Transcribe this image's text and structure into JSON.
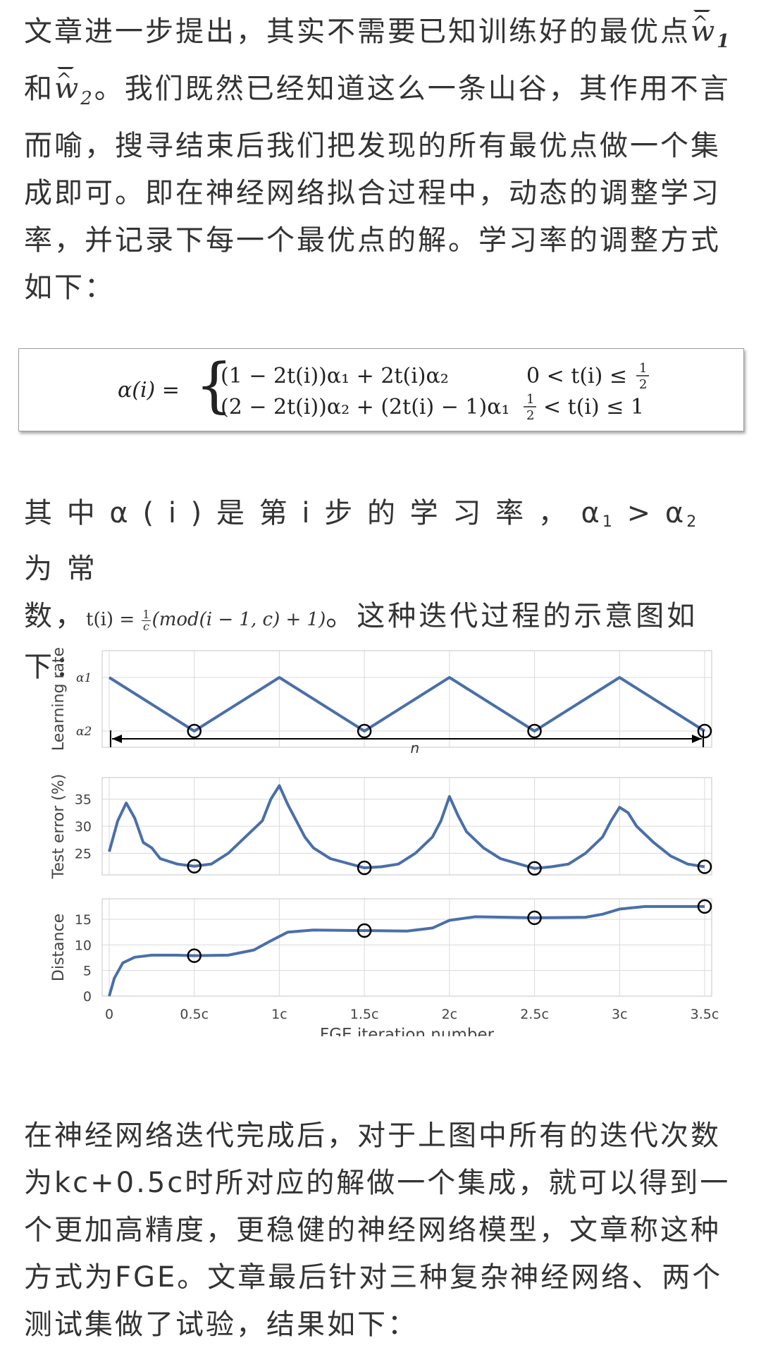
{
  "para1": {
    "text": "文章进一步提出，其实不需要已知训练好的最优点",
    "w1": "w",
    "w1_sub": "1",
    "and": "和",
    "w2": "w",
    "w2_sub": "2",
    "rest": "。我们既然已经知道这么一条山谷，其作用不言而喻，搜寻结束后我们把发现的所有最优点做一个集成即可。即在神经网络拟合过程中，动态的调整学习率，并记录下每一个最优点的解。学习率的调整方式如下："
  },
  "formula": {
    "lhs": "α(i) =",
    "case1_expr": "(1 − 2t(i))α₁ + 2t(i)α₂",
    "case1_cond_pre": "0 < t(i) ≤",
    "case2_expr": "(2 − 2t(i))α₂ + (2t(i) − 1)α₁",
    "case2_cond_post": "< t(i) ≤ 1",
    "half_num": "1",
    "half_den": "2"
  },
  "para2": {
    "text1": "其 中 α ( i ) 是 第 i 步 的 学 习 率 ， α",
    "sub1": "1",
    "gt": " > α",
    "sub2": "2",
    "text2": " 为 常",
    "text3": "数，",
    "t_expr_lhs": "t(i) =",
    "frac_num": "1",
    "frac_den": "c",
    "t_expr_rhs": "(mod(i − 1, c) + 1)",
    "text4": "。这种迭代过程的示意图如下："
  },
  "chart_data": [
    {
      "type": "line",
      "ylabel": "Learning rate",
      "yticks": [
        "α1",
        "α2"
      ],
      "x": [
        0,
        0.5,
        1,
        1.5,
        2,
        2.5,
        3,
        3.5
      ],
      "series": [
        {
          "values": [
            1,
            0,
            1,
            0,
            1,
            0,
            1,
            0
          ]
        }
      ],
      "markers_x": [
        0.5,
        1.5,
        2.5,
        3.5
      ],
      "annotation": "n"
    },
    {
      "type": "line",
      "ylabel": "Test error (%)",
      "yticks": [
        25,
        30,
        35
      ],
      "ylim": [
        21,
        39
      ],
      "x": [
        0,
        0.05,
        0.1,
        0.15,
        0.2,
        0.25,
        0.3,
        0.4,
        0.5,
        0.6,
        0.7,
        0.8,
        0.9,
        0.95,
        1.0,
        1.05,
        1.1,
        1.15,
        1.2,
        1.3,
        1.5,
        1.6,
        1.7,
        1.8,
        1.9,
        1.95,
        2.0,
        2.05,
        2.1,
        2.2,
        2.3,
        2.5,
        2.6,
        2.7,
        2.8,
        2.9,
        2.95,
        3.0,
        3.05,
        3.1,
        3.2,
        3.3,
        3.4,
        3.5
      ],
      "series": [
        {
          "values": [
            25.3,
            31,
            34.3,
            31.5,
            27,
            26,
            24,
            23,
            22.6,
            23,
            25,
            28,
            31,
            35,
            37.5,
            34,
            31,
            28,
            26,
            24,
            22.3,
            22.5,
            23,
            25,
            28,
            31,
            35.5,
            32,
            29,
            26,
            24,
            22.2,
            22.5,
            23,
            25,
            28,
            31,
            33.5,
            32.5,
            30,
            27,
            24.5,
            23,
            22.5
          ]
        }
      ],
      "markers_x": [
        0.5,
        1.5,
        2.5,
        3.5
      ],
      "markers_y": [
        22.6,
        22.3,
        22.2,
        22.5
      ]
    },
    {
      "type": "line",
      "ylabel": "Distance",
      "yticks": [
        0,
        5,
        10,
        15
      ],
      "ylim": [
        0,
        19
      ],
      "x": [
        0,
        0.03,
        0.08,
        0.15,
        0.25,
        0.4,
        0.5,
        0.7,
        0.85,
        0.95,
        1.05,
        1.2,
        1.5,
        1.75,
        1.9,
        2.0,
        2.15,
        2.5,
        2.8,
        2.9,
        3.0,
        3.15,
        3.5
      ],
      "series": [
        {
          "values": [
            0,
            3.5,
            6.5,
            7.6,
            8.0,
            8.0,
            7.9,
            8.0,
            9.0,
            10.8,
            12.5,
            12.9,
            12.8,
            12.7,
            13.3,
            14.8,
            15.5,
            15.3,
            15.4,
            16.0,
            17.0,
            17.5,
            17.5
          ]
        }
      ],
      "markers_x": [
        0.5,
        1.5,
        2.5,
        3.5
      ],
      "markers_y": [
        7.9,
        12.8,
        15.3,
        17.5
      ],
      "xticks": [
        "0",
        "0.5c",
        "1c",
        "1.5c",
        "2c",
        "2.5c",
        "3c",
        "3.5c"
      ],
      "xlabel": "FGE iteration number"
    }
  ],
  "chart_style": {
    "line_color": "#4a6fa8",
    "grid_color": "#d9d9d9",
    "marker_color": "#000000"
  },
  "para3": {
    "text": "在神经网络迭代完成后，对于上图中所有的迭代次数为kc+0.5c时所对应的解做一个集成，就可以得到一个更加高精度，更稳健的神经网络模型，文章称这种方式为FGE。文章最后针对三种复杂神经网络、两个测试集做了试验，结果如下："
  }
}
